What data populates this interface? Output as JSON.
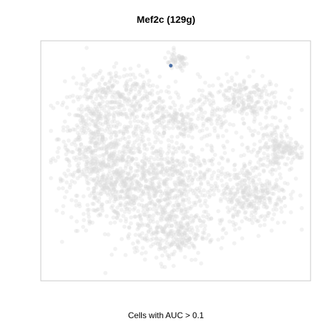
{
  "chart_data": {
    "type": "scatter",
    "title": "Mef2c (129g)",
    "caption": "Cells with AUC > 0.1",
    "xlabel": "",
    "ylabel": "",
    "axes_visible": false,
    "grid": false,
    "legend": "none",
    "xlim": [
      0,
      100
    ],
    "ylim": [
      0,
      100
    ],
    "series": [
      {
        "role": "background",
        "color": "#d9d9d9",
        "description_clusters": [
          {
            "cx": 18,
            "cy": 60,
            "sx": 7,
            "sy": 12,
            "n": 420
          },
          {
            "cx": 28,
            "cy": 40,
            "sx": 10,
            "sy": 10,
            "n": 520
          },
          {
            "cx": 50,
            "cy": 40,
            "sx": 12,
            "sy": 10,
            "n": 520
          },
          {
            "cx": 48,
            "cy": 18,
            "sx": 7,
            "sy": 6,
            "n": 260
          },
          {
            "cx": 80,
            "cy": 35,
            "sx": 7,
            "sy": 7,
            "n": 300
          },
          {
            "cx": 88,
            "cy": 55,
            "sx": 5,
            "sy": 6,
            "n": 160
          },
          {
            "cx": 75,
            "cy": 77,
            "sx": 8,
            "sy": 5,
            "n": 220
          },
          {
            "cx": 30,
            "cy": 80,
            "sx": 8,
            "sy": 5,
            "n": 200
          },
          {
            "cx": 50,
            "cy": 67,
            "sx": 11,
            "sy": 5,
            "n": 260
          },
          {
            "cx": 50,
            "cy": 93,
            "sx": 2.5,
            "sy": 2,
            "n": 50
          },
          {
            "cx": 93,
            "cy": 55,
            "sx": 3,
            "sy": 2.5,
            "n": 40
          }
        ]
      },
      {
        "role": "highlighted",
        "color": "#4a6fa5",
        "points": [
          {
            "x": 47.8,
            "y": 91.3
          }
        ]
      }
    ]
  }
}
